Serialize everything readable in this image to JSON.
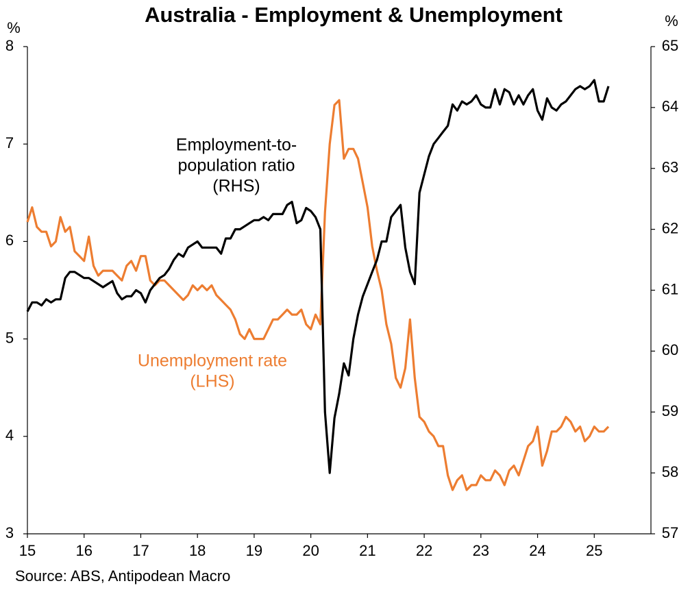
{
  "chart_data": {
    "type": "line",
    "title": "Australia - Employment & Unemployment",
    "ylabel": "%",
    "y2label": "%",
    "source": "Source: ABS, Antipodean Macro",
    "xlim": [
      15,
      26
    ],
    "xticks": [
      15,
      16,
      17,
      18,
      19,
      20,
      21,
      22,
      23,
      24,
      25
    ],
    "ylim": [
      3,
      8
    ],
    "yticks": [
      3,
      4,
      5,
      6,
      7,
      8
    ],
    "y2lim": [
      57,
      65
    ],
    "y2ticks": [
      57,
      58,
      59,
      60,
      61,
      62,
      63,
      64,
      65
    ],
    "x": [
      15,
      15.083,
      15.167,
      15.25,
      15.333,
      15.417,
      15.5,
      15.583,
      15.667,
      15.75,
      15.833,
      15.917,
      16,
      16.083,
      16.167,
      16.25,
      16.333,
      16.417,
      16.5,
      16.583,
      16.667,
      16.75,
      16.833,
      16.917,
      17,
      17.083,
      17.167,
      17.25,
      17.333,
      17.417,
      17.5,
      17.583,
      17.667,
      17.75,
      17.833,
      17.917,
      18,
      18.083,
      18.167,
      18.25,
      18.333,
      18.417,
      18.5,
      18.583,
      18.667,
      18.75,
      18.833,
      18.917,
      19,
      19.083,
      19.167,
      19.25,
      19.333,
      19.417,
      19.5,
      19.583,
      19.667,
      19.75,
      19.833,
      19.917,
      20,
      20.083,
      20.167,
      20.25,
      20.333,
      20.417,
      20.5,
      20.583,
      20.667,
      20.75,
      20.833,
      20.917,
      21,
      21.083,
      21.167,
      21.25,
      21.333,
      21.417,
      21.5,
      21.583,
      21.667,
      21.75,
      21.833,
      21.917,
      22,
      22.083,
      22.167,
      22.25,
      22.333,
      22.417,
      22.5,
      22.583,
      22.667,
      22.75,
      22.833,
      22.917,
      23,
      23.083,
      23.167,
      23.25,
      23.333,
      23.417,
      23.5,
      23.583,
      23.667,
      23.75,
      23.833,
      23.917,
      24,
      24.083,
      24.167,
      24.25,
      24.333,
      24.417,
      24.5,
      24.583,
      24.667,
      24.75,
      24.833,
      24.917,
      25,
      25.083,
      25.167,
      25.25
    ],
    "series": [
      {
        "name": "Unemployment rate (LHS)",
        "color": "#ed7d31",
        "axis": "y",
        "values": [
          6.2,
          6.35,
          6.15,
          6.1,
          6.1,
          5.95,
          6.0,
          6.25,
          6.1,
          6.15,
          5.9,
          5.85,
          5.8,
          6.05,
          5.75,
          5.65,
          5.7,
          5.7,
          5.7,
          5.65,
          5.6,
          5.75,
          5.8,
          5.7,
          5.85,
          5.85,
          5.6,
          5.55,
          5.6,
          5.6,
          5.55,
          5.5,
          5.45,
          5.4,
          5.45,
          5.55,
          5.5,
          5.55,
          5.5,
          5.55,
          5.45,
          5.4,
          5.35,
          5.3,
          5.2,
          5.05,
          5.0,
          5.1,
          5.0,
          5.0,
          5.0,
          5.1,
          5.2,
          5.2,
          5.25,
          5.3,
          5.25,
          5.25,
          5.3,
          5.15,
          5.1,
          5.25,
          5.15,
          6.3,
          7.0,
          7.4,
          7.45,
          6.85,
          6.95,
          6.95,
          6.85,
          6.6,
          6.35,
          5.95,
          5.7,
          5.5,
          5.15,
          4.95,
          4.6,
          4.5,
          4.7,
          5.2,
          4.6,
          4.2,
          4.15,
          4.05,
          4.0,
          3.9,
          3.9,
          3.6,
          3.45,
          3.55,
          3.6,
          3.45,
          3.5,
          3.5,
          3.6,
          3.55,
          3.55,
          3.65,
          3.6,
          3.5,
          3.65,
          3.7,
          3.6,
          3.75,
          3.9,
          3.95,
          4.1,
          3.7,
          3.85,
          4.05,
          4.05,
          4.1,
          4.2,
          4.15,
          4.05,
          4.1,
          3.95,
          4.0,
          4.1,
          4.05,
          4.05,
          4.1
        ]
      },
      {
        "name": "Employment-to-population ratio (RHS)",
        "color": "#000000",
        "axis": "y2",
        "values": [
          60.65,
          60.8,
          60.8,
          60.75,
          60.85,
          60.8,
          60.85,
          60.85,
          61.2,
          61.3,
          61.3,
          61.25,
          61.2,
          61.2,
          61.15,
          61.1,
          61.05,
          61.1,
          61.15,
          60.95,
          60.85,
          60.9,
          60.9,
          61.0,
          60.95,
          60.8,
          61.0,
          61.1,
          61.2,
          61.25,
          61.35,
          61.5,
          61.6,
          61.55,
          61.7,
          61.75,
          61.8,
          61.7,
          61.7,
          61.7,
          61.7,
          61.6,
          61.85,
          61.85,
          62.0,
          62.0,
          62.05,
          62.1,
          62.15,
          62.15,
          62.2,
          62.15,
          62.25,
          62.25,
          62.25,
          62.4,
          62.45,
          62.1,
          62.15,
          62.35,
          62.3,
          62.2,
          62.0,
          59.0,
          58.0,
          58.9,
          59.3,
          59.8,
          59.6,
          60.2,
          60.6,
          60.9,
          61.1,
          61.3,
          61.5,
          61.8,
          61.8,
          62.2,
          62.3,
          62.4,
          61.7,
          61.3,
          61.1,
          62.6,
          62.9,
          63.2,
          63.4,
          63.5,
          63.6,
          63.7,
          64.05,
          63.95,
          64.1,
          64.05,
          64.1,
          64.2,
          64.05,
          64.0,
          64.0,
          64.3,
          64.05,
          64.3,
          64.25,
          64.05,
          64.2,
          64.05,
          64.2,
          64.3,
          63.95,
          63.8,
          64.15,
          64.0,
          63.95,
          64.05,
          64.1,
          64.2,
          64.3,
          64.35,
          64.3,
          64.35,
          64.45,
          64.1,
          64.1,
          64.35
        ]
      }
    ],
    "annotations": [
      {
        "lines": [
          "Employment-to-",
          "population ratio",
          "(RHS)"
        ],
        "color": "#000000"
      },
      {
        "lines": [
          "Unemployment rate",
          "(LHS)"
        ],
        "color": "#ed7d31"
      }
    ]
  }
}
